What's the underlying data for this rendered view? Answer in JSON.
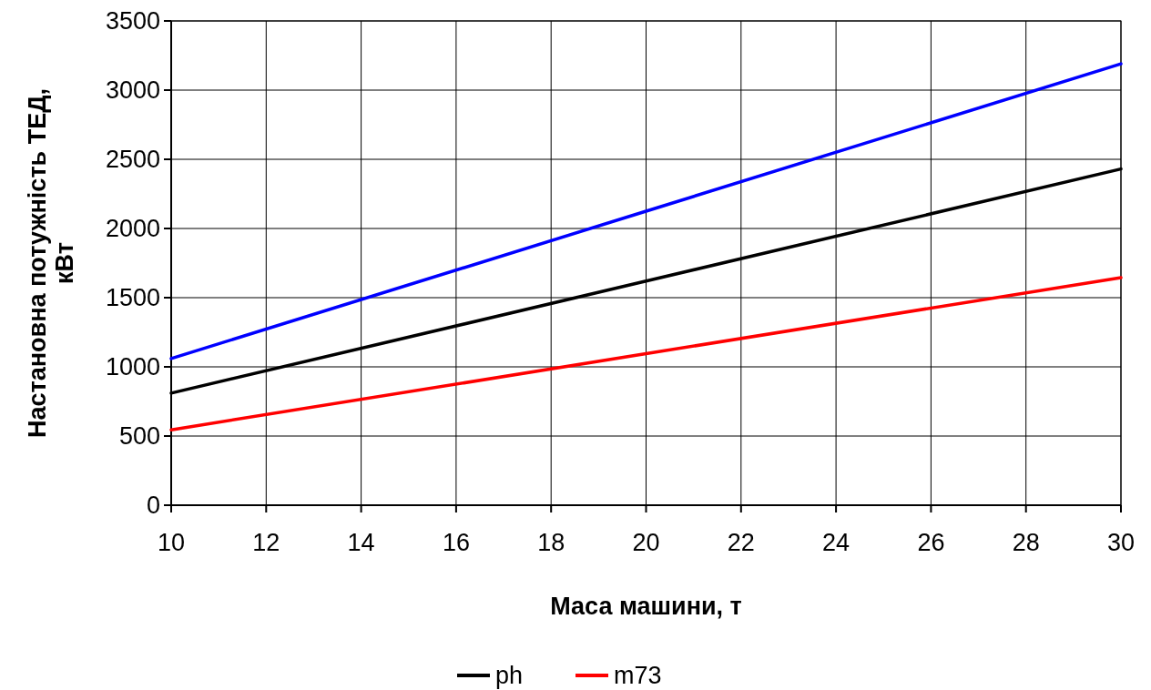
{
  "chart_data": {
    "type": "line",
    "xlabel": "Маса машини, т",
    "ylabel": "Настановна потужність ТЕД, кВт",
    "x": [
      10,
      20,
      30
    ],
    "series": [
      {
        "name": "ph",
        "color": "#000000",
        "values": [
          810,
          1620,
          2430
        ]
      },
      {
        "color": "#0000ff",
        "values": [
          1060,
          2125,
          3190
        ]
      },
      {
        "name": "m73",
        "color": "#ff0000",
        "values": [
          545,
          1095,
          1645
        ]
      }
    ],
    "xlim": [
      10,
      30
    ],
    "xticks": [
      10,
      12,
      14,
      16,
      18,
      20,
      22,
      24,
      26,
      28,
      30
    ],
    "ylim": [
      0,
      3500
    ],
    "yticks": [
      0,
      500,
      1000,
      1500,
      2000,
      2500,
      3000,
      3500
    ],
    "grid": true,
    "legend": "bottom",
    "marker": "none",
    "line_style": "solid"
  }
}
